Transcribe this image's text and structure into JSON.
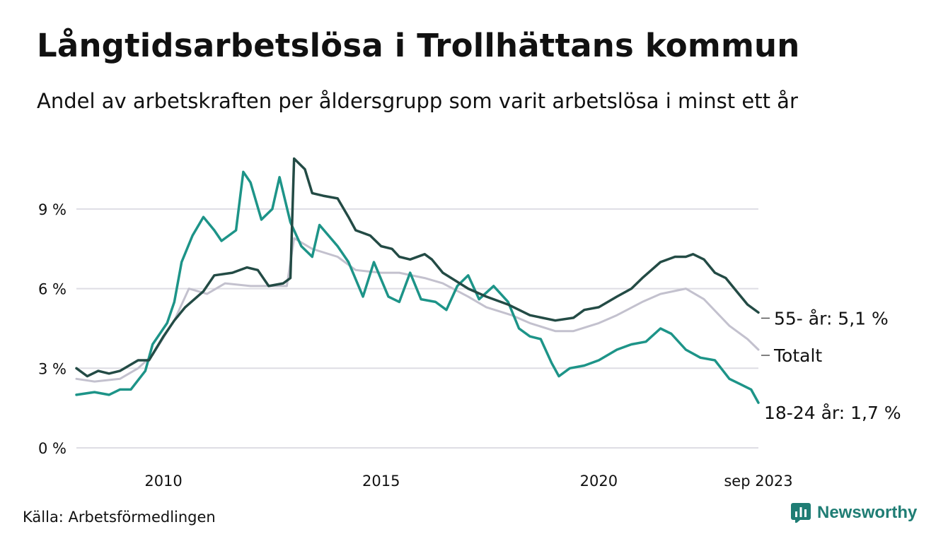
{
  "header": {
    "title": "Långtidsarbetslösa i Trollhättans kommun",
    "subtitle": "Andel av arbetskraften per åldersgrupp som varit arbetslösa i minst ett år"
  },
  "footer": {
    "source": "Källa: Arbetsförmedlingen",
    "brand": "Newsworthy"
  },
  "colors": {
    "senior": "#234b45",
    "total": "#c3c1ce",
    "youth": "#1d9488",
    "grid": "#dedde4"
  },
  "chart_data": {
    "type": "line",
    "ylim": [
      0,
      11.5
    ],
    "xlim": [
      "2008-01",
      "2023-09"
    ],
    "y_ticks": [
      {
        "value": 0,
        "label": "0 %"
      },
      {
        "value": 3,
        "label": "3 %"
      },
      {
        "value": 6,
        "label": "6 %"
      },
      {
        "value": 9,
        "label": "9 %"
      }
    ],
    "x_ticks": [
      {
        "date": "2010-01",
        "label": "2010"
      },
      {
        "date": "2015-01",
        "label": "2015"
      },
      {
        "date": "2020-01",
        "label": "2020"
      },
      {
        "date": "2023-09",
        "label": "sep 2023"
      }
    ],
    "grid": true,
    "series": [
      {
        "key": "total",
        "end_label": "Totalt",
        "color": "#c3c1ce",
        "points": [
          [
            "2008-01",
            2.6
          ],
          [
            "2008-06",
            2.5
          ],
          [
            "2009-01",
            2.6
          ],
          [
            "2009-06",
            3.0
          ],
          [
            "2009-10",
            3.5
          ],
          [
            "2010-04",
            4.8
          ],
          [
            "2010-08",
            6.0
          ],
          [
            "2011-01",
            5.8
          ],
          [
            "2011-06",
            6.2
          ],
          [
            "2012-01",
            6.1
          ],
          [
            "2012-06",
            6.1
          ],
          [
            "2012-11",
            6.1
          ],
          [
            "2013-01",
            7.9
          ],
          [
            "2013-06",
            7.5
          ],
          [
            "2014-01",
            7.2
          ],
          [
            "2014-06",
            6.7
          ],
          [
            "2015-01",
            6.6
          ],
          [
            "2015-06",
            6.6
          ],
          [
            "2016-01",
            6.4
          ],
          [
            "2016-06",
            6.2
          ],
          [
            "2017-01",
            5.7
          ],
          [
            "2017-06",
            5.3
          ],
          [
            "2018-01",
            5.0
          ],
          [
            "2018-06",
            4.7
          ],
          [
            "2019-01",
            4.4
          ],
          [
            "2019-06",
            4.4
          ],
          [
            "2020-01",
            4.7
          ],
          [
            "2020-06",
            5.0
          ],
          [
            "2021-01",
            5.5
          ],
          [
            "2021-06",
            5.8
          ],
          [
            "2022-01",
            6.0
          ],
          [
            "2022-06",
            5.6
          ],
          [
            "2023-01",
            4.6
          ],
          [
            "2023-06",
            4.1
          ],
          [
            "2023-09",
            3.7
          ]
        ]
      },
      {
        "key": "youth",
        "end_label": "18-24 år: 1,7 %",
        "color": "#1d9488",
        "points": [
          [
            "2008-01",
            2.0
          ],
          [
            "2008-06",
            2.1
          ],
          [
            "2008-10",
            2.0
          ],
          [
            "2009-01",
            2.2
          ],
          [
            "2009-04",
            2.2
          ],
          [
            "2009-08",
            2.9
          ],
          [
            "2009-10",
            3.9
          ],
          [
            "2010-02",
            4.7
          ],
          [
            "2010-04",
            5.5
          ],
          [
            "2010-06",
            7.0
          ],
          [
            "2010-09",
            8.0
          ],
          [
            "2010-12",
            8.7
          ],
          [
            "2011-03",
            8.2
          ],
          [
            "2011-05",
            7.8
          ],
          [
            "2011-09",
            8.2
          ],
          [
            "2011-11",
            10.4
          ],
          [
            "2012-01",
            10.0
          ],
          [
            "2012-04",
            8.6
          ],
          [
            "2012-07",
            9.0
          ],
          [
            "2012-09",
            10.2
          ],
          [
            "2012-12",
            8.5
          ],
          [
            "2013-03",
            7.6
          ],
          [
            "2013-06",
            7.2
          ],
          [
            "2013-08",
            8.4
          ],
          [
            "2014-01",
            7.6
          ],
          [
            "2014-04",
            7.0
          ],
          [
            "2014-08",
            5.7
          ],
          [
            "2014-11",
            7.0
          ],
          [
            "2015-03",
            5.7
          ],
          [
            "2015-06",
            5.5
          ],
          [
            "2015-09",
            6.6
          ],
          [
            "2015-12",
            5.6
          ],
          [
            "2016-04",
            5.5
          ],
          [
            "2016-07",
            5.2
          ],
          [
            "2016-10",
            6.1
          ],
          [
            "2017-01",
            6.5
          ],
          [
            "2017-04",
            5.6
          ],
          [
            "2017-08",
            6.1
          ],
          [
            "2017-12",
            5.5
          ],
          [
            "2018-03",
            4.5
          ],
          [
            "2018-06",
            4.2
          ],
          [
            "2018-09",
            4.1
          ],
          [
            "2018-12",
            3.2
          ],
          [
            "2019-02",
            2.7
          ],
          [
            "2019-05",
            3.0
          ],
          [
            "2019-09",
            3.1
          ],
          [
            "2020-01",
            3.3
          ],
          [
            "2020-06",
            3.7
          ],
          [
            "2020-10",
            3.9
          ],
          [
            "2021-02",
            4.0
          ],
          [
            "2021-06",
            4.5
          ],
          [
            "2021-09",
            4.3
          ],
          [
            "2022-01",
            3.7
          ],
          [
            "2022-05",
            3.4
          ],
          [
            "2022-09",
            3.3
          ],
          [
            "2023-01",
            2.6
          ],
          [
            "2023-04",
            2.4
          ],
          [
            "2023-07",
            2.2
          ],
          [
            "2023-09",
            1.7
          ]
        ]
      },
      {
        "key": "senior",
        "end_label": "55- år: 5,1 %",
        "color": "#234b45",
        "points": [
          [
            "2008-01",
            3.0
          ],
          [
            "2008-04",
            2.7
          ],
          [
            "2008-07",
            2.9
          ],
          [
            "2008-10",
            2.8
          ],
          [
            "2009-01",
            2.9
          ],
          [
            "2009-06",
            3.3
          ],
          [
            "2009-09",
            3.3
          ],
          [
            "2010-01",
            4.2
          ],
          [
            "2010-04",
            4.8
          ],
          [
            "2010-07",
            5.3
          ],
          [
            "2010-12",
            5.9
          ],
          [
            "2011-03",
            6.5
          ],
          [
            "2011-08",
            6.6
          ],
          [
            "2011-12",
            6.8
          ],
          [
            "2012-03",
            6.7
          ],
          [
            "2012-06",
            6.1
          ],
          [
            "2012-10",
            6.2
          ],
          [
            "2012-12",
            6.4
          ],
          [
            "2013-01",
            10.9
          ],
          [
            "2013-04",
            10.5
          ],
          [
            "2013-06",
            9.6
          ],
          [
            "2013-09",
            9.5
          ],
          [
            "2014-01",
            9.4
          ],
          [
            "2014-04",
            8.7
          ],
          [
            "2014-06",
            8.2
          ],
          [
            "2014-10",
            8.0
          ],
          [
            "2015-01",
            7.6
          ],
          [
            "2015-04",
            7.5
          ],
          [
            "2015-06",
            7.2
          ],
          [
            "2015-09",
            7.1
          ],
          [
            "2016-01",
            7.3
          ],
          [
            "2016-03",
            7.1
          ],
          [
            "2016-06",
            6.6
          ],
          [
            "2017-01",
            6.0
          ],
          [
            "2017-06",
            5.7
          ],
          [
            "2017-12",
            5.4
          ],
          [
            "2018-06",
            5.0
          ],
          [
            "2019-01",
            4.8
          ],
          [
            "2019-06",
            4.9
          ],
          [
            "2019-09",
            5.2
          ],
          [
            "2020-01",
            5.3
          ],
          [
            "2020-06",
            5.7
          ],
          [
            "2020-10",
            6.0
          ],
          [
            "2021-01",
            6.4
          ],
          [
            "2021-06",
            7.0
          ],
          [
            "2021-10",
            7.2
          ],
          [
            "2022-01",
            7.2
          ],
          [
            "2022-03",
            7.3
          ],
          [
            "2022-06",
            7.1
          ],
          [
            "2022-09",
            6.6
          ],
          [
            "2022-12",
            6.4
          ],
          [
            "2023-03",
            5.9
          ],
          [
            "2023-06",
            5.4
          ],
          [
            "2023-09",
            5.1
          ]
        ]
      }
    ]
  }
}
